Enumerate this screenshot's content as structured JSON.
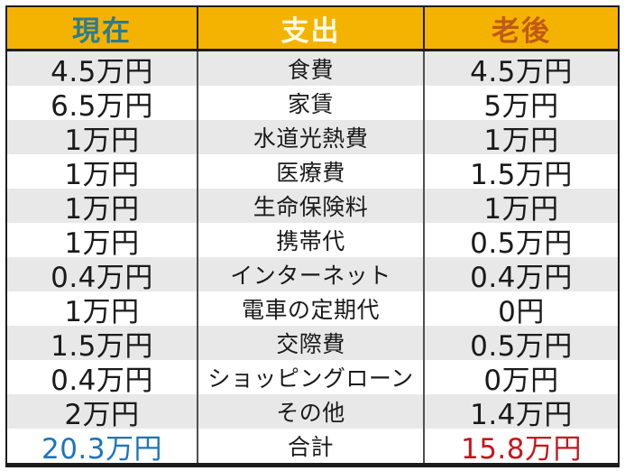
{
  "table": {
    "columns": [
      {
        "key": "current",
        "label": "現在",
        "label_color": "#2E7B8E"
      },
      {
        "key": "category",
        "label": "支出",
        "label_color": "#FFFDE8"
      },
      {
        "key": "future",
        "label": "老後",
        "label_color": "#C05A14"
      }
    ],
    "rows": [
      {
        "current": "4.5万円",
        "category": "食費",
        "future": "4.5万円"
      },
      {
        "current": "6.5万円",
        "category": "家賃",
        "future": "5万円"
      },
      {
        "current": "1万円",
        "category": "水道光熱費",
        "future": "1万円"
      },
      {
        "current": "1万円",
        "category": "医療費",
        "future": "1.5万円"
      },
      {
        "current": "1万円",
        "category": "生命保険料",
        "future": "1万円"
      },
      {
        "current": "1万円",
        "category": "携帯代",
        "future": "0.5万円"
      },
      {
        "current": "0.4万円",
        "category": "インターネット",
        "future": "0.4万円"
      },
      {
        "current": "1万円",
        "category": "電車の定期代",
        "future": "0円"
      },
      {
        "current": "1.5万円",
        "category": "交際費",
        "future": "0.5万円"
      },
      {
        "current": "0.4万円",
        "category": "ショッピングローン",
        "future": "0万円"
      },
      {
        "current": "2万円",
        "category": "その他",
        "future": "1.4万円"
      }
    ],
    "total_row": {
      "current": "20.3万円",
      "category": "合計",
      "future": "15.8万円"
    }
  },
  "colors": {
    "header_bg": "#F5B301",
    "row_bg": "#FFFFFF",
    "row_alt_bg": "#E8E8E8",
    "border_outer": "#1C1C1C",
    "border_inner": "#4F4F4F",
    "cell_text": "#1A1A1A",
    "total_current_color": "#1B75BC",
    "total_future_color": "#C4161C"
  },
  "chart_data": {
    "type": "table",
    "columns": [
      "現在",
      "支出",
      "老後"
    ],
    "rows": [
      [
        "4.5万円",
        "食費",
        "4.5万円"
      ],
      [
        "6.5万円",
        "家賃",
        "5万円"
      ],
      [
        "1万円",
        "水道光熱費",
        "1万円"
      ],
      [
        "1万円",
        "医療費",
        "1.5万円"
      ],
      [
        "1万円",
        "生命保険料",
        "1万円"
      ],
      [
        "1万円",
        "携帯代",
        "0.5万円"
      ],
      [
        "0.4万円",
        "インターネット",
        "0.4万円"
      ],
      [
        "1万円",
        "電車の定期代",
        "0円"
      ],
      [
        "1.5万円",
        "交際費",
        "0.5万円"
      ],
      [
        "0.4万円",
        "ショッピングローン",
        "0万円"
      ],
      [
        "2万円",
        "その他",
        "1.4万円"
      ],
      [
        "20.3万円",
        "合計",
        "15.8万円"
      ]
    ],
    "layout_hints": {
      "header_background": "#F5B301",
      "alternating_row_shading": true,
      "total_row_colors": {
        "current": "#1B75BC",
        "future": "#C4161C"
      }
    }
  }
}
